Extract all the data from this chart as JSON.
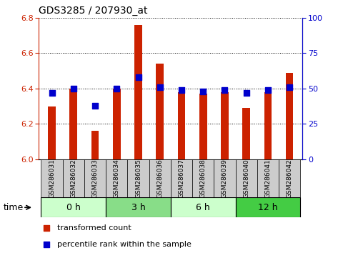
{
  "title": "GDS3285 / 207930_at",
  "samples": [
    "GSM286031",
    "GSM286032",
    "GSM286033",
    "GSM286034",
    "GSM286035",
    "GSM286036",
    "GSM286037",
    "GSM286038",
    "GSM286039",
    "GSM286040",
    "GSM286041",
    "GSM286042"
  ],
  "transformed_count": [
    6.3,
    6.4,
    6.16,
    6.4,
    6.76,
    6.54,
    6.38,
    6.37,
    6.38,
    6.29,
    6.38,
    6.49
  ],
  "percentile_rank": [
    47,
    50,
    38,
    50,
    58,
    51,
    49,
    48,
    49,
    47,
    49,
    51
  ],
  "time_groups": [
    {
      "label": "0 h",
      "start": 0,
      "end": 3,
      "color": "#ccffcc"
    },
    {
      "label": "3 h",
      "start": 3,
      "end": 6,
      "color": "#88dd88"
    },
    {
      "label": "6 h",
      "start": 6,
      "end": 9,
      "color": "#ccffcc"
    },
    {
      "label": "12 h",
      "start": 9,
      "end": 12,
      "color": "#44cc44"
    }
  ],
  "ylim_left": [
    6.0,
    6.8
  ],
  "ylim_right": [
    0,
    100
  ],
  "yticks_left": [
    6.0,
    6.2,
    6.4,
    6.6,
    6.8
  ],
  "yticks_right": [
    0,
    25,
    50,
    75,
    100
  ],
  "bar_color": "#cc2200",
  "dot_color": "#0000cc",
  "bar_bottom": 6.0,
  "bar_width": 0.35,
  "dot_size": 40,
  "label_bg": "#cccccc",
  "title_fontsize": 10,
  "axis_fontsize": 8,
  "label_fontsize": 6.5,
  "time_fontsize": 9
}
